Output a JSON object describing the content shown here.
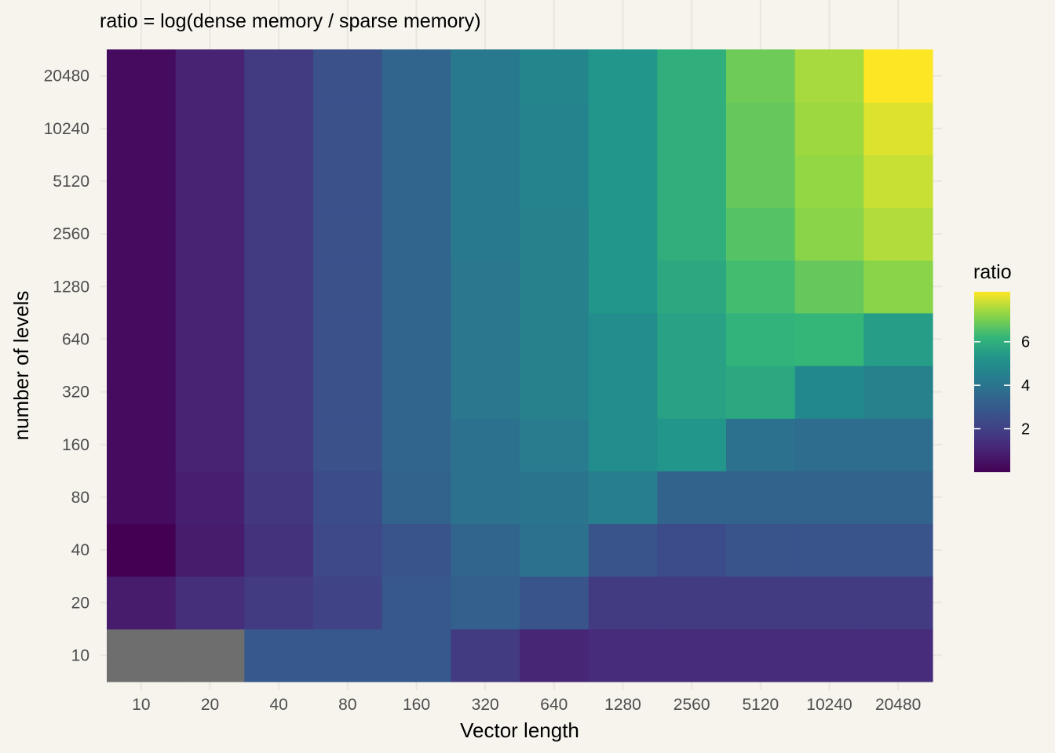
{
  "chart_data": {
    "type": "heatmap",
    "title": "ratio = log(dense memory / sparse memory)",
    "xlabel": "Vector length",
    "ylabel": "number of levels",
    "x_categories": [
      "10",
      "20",
      "40",
      "80",
      "160",
      "320",
      "640",
      "1280",
      "2560",
      "5120",
      "10240",
      "20480"
    ],
    "y_categories": [
      "10",
      "20",
      "40",
      "80",
      "160",
      "320",
      "640",
      "1280",
      "2560",
      "5120",
      "10240",
      "20480"
    ],
    "z_note": "rows follow y_categories order (10 to 20480); null = missing value",
    "z": [
      [
        null,
        null,
        2.9,
        2.9,
        2.9,
        1.8,
        1.1,
        1.3,
        1.3,
        1.3,
        1.3,
        1.3
      ],
      [
        0.8,
        1.4,
        1.8,
        2.1,
        2.9,
        3.2,
        2.7,
        1.8,
        1.8,
        1.8,
        1.8,
        1.8
      ],
      [
        0.0,
        0.8,
        1.5,
        2.3,
        2.7,
        3.4,
        3.9,
        2.7,
        2.4,
        2.7,
        2.7,
        2.7
      ],
      [
        0.3,
        0.9,
        1.7,
        2.4,
        3.3,
        3.9,
        4.0,
        4.4,
        3.3,
        3.3,
        3.3,
        3.3
      ],
      [
        0.3,
        1.0,
        1.8,
        2.6,
        3.4,
        3.9,
        4.3,
        5.0,
        5.3,
        3.9,
        3.7,
        3.7
      ],
      [
        0.3,
        1.0,
        1.8,
        2.6,
        3.4,
        4.1,
        4.5,
        5.0,
        5.6,
        5.8,
        4.8,
        4.5
      ],
      [
        0.3,
        1.0,
        1.8,
        2.6,
        3.4,
        4.1,
        4.5,
        5.0,
        5.6,
        6.1,
        6.2,
        5.5
      ],
      [
        0.3,
        1.0,
        1.8,
        2.6,
        3.4,
        4.1,
        4.5,
        5.3,
        5.8,
        6.4,
        6.8,
        7.2
      ],
      [
        0.3,
        1.0,
        1.8,
        2.6,
        3.4,
        4.2,
        4.5,
        5.3,
        6.0,
        6.6,
        7.2,
        7.6
      ],
      [
        0.3,
        1.0,
        1.8,
        2.6,
        3.4,
        4.2,
        4.6,
        5.3,
        6.0,
        6.8,
        7.3,
        7.8
      ],
      [
        0.3,
        1.0,
        1.8,
        2.6,
        3.4,
        4.2,
        4.6,
        5.3,
        6.0,
        6.8,
        7.4,
        8.0
      ],
      [
        0.3,
        1.0,
        1.8,
        2.6,
        3.4,
        4.2,
        4.7,
        5.3,
        6.0,
        6.9,
        7.5,
        8.3
      ]
    ],
    "na_color": "#6E6E6E",
    "colormap": "viridis",
    "zlim": [
      0,
      8.3
    ],
    "legend": {
      "title": "ratio",
      "position": "right",
      "ticks": [
        "2",
        "4",
        "6"
      ]
    },
    "grid": true
  }
}
